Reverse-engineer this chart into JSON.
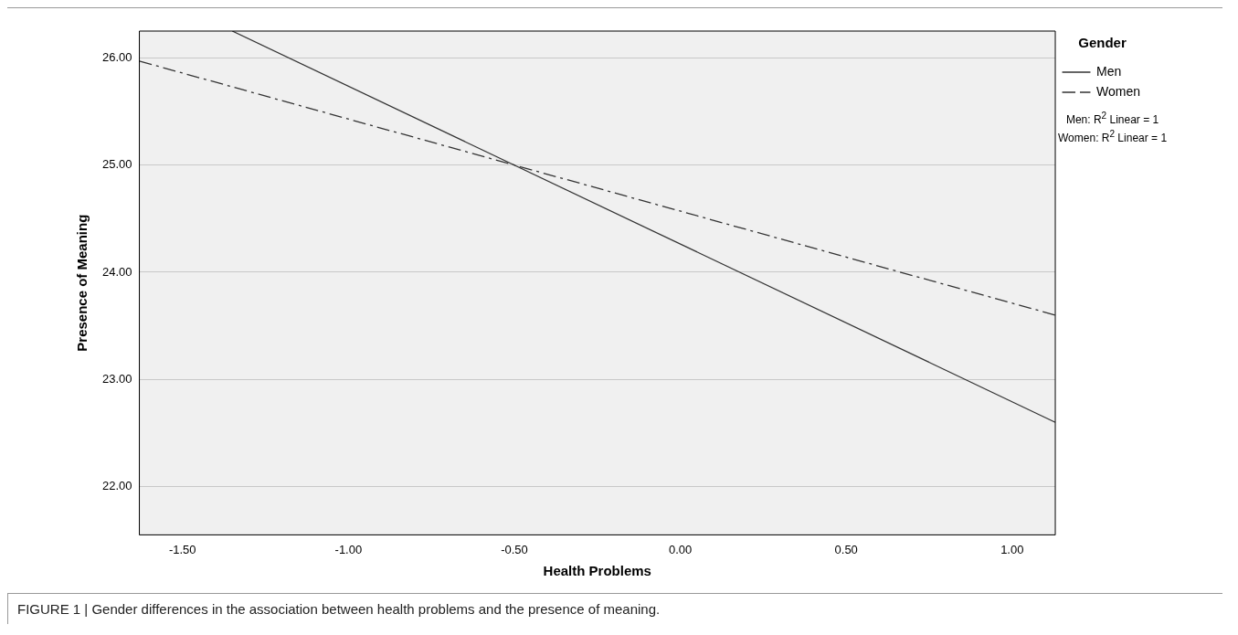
{
  "chart_data": {
    "type": "line",
    "xlabel": "Health Problems",
    "ylabel": "Presence of Meaning",
    "legend_title": "Gender",
    "legend": "right",
    "grid": "y",
    "marker": "none",
    "xlim": [
      -1.63,
      1.13
    ],
    "xticks": [
      {
        "value": -1.5,
        "label": "-1.50"
      },
      {
        "value": -1,
        "label": "-1.00"
      },
      {
        "value": -0.5,
        "label": "-0.50"
      },
      {
        "value": 0,
        "label": "0.00"
      },
      {
        "value": 0.5,
        "label": "0.50"
      },
      {
        "value": 1,
        "label": "1.00"
      }
    ],
    "ylim": [
      21.55,
      26.25
    ],
    "yticks": [
      {
        "value": 22,
        "label": "22.00"
      },
      {
        "value": 23,
        "label": "23.00"
      },
      {
        "value": 24,
        "label": "24.00"
      },
      {
        "value": 25,
        "label": "25.00"
      },
      {
        "value": 26,
        "label": "26.00"
      }
    ],
    "series": [
      {
        "name": "Men",
        "color": "#333333",
        "line_style": "solid",
        "x": [
          -1.35,
          1.13
        ],
        "values": [
          26.25,
          22.6
        ]
      },
      {
        "name": "Women",
        "color": "#333333",
        "line_style": "dashed",
        "x": [
          -1.63,
          1.13
        ],
        "values": [
          25.97,
          23.6
        ]
      }
    ],
    "annotations": [
      "Men: R$^{2}$ Linear = 1",
      "Women: R$^{2}$ Linear = 1",
      "FIGURE 1 | Gender differences in the association between health problems and the presence of meaning."
    ]
  }
}
